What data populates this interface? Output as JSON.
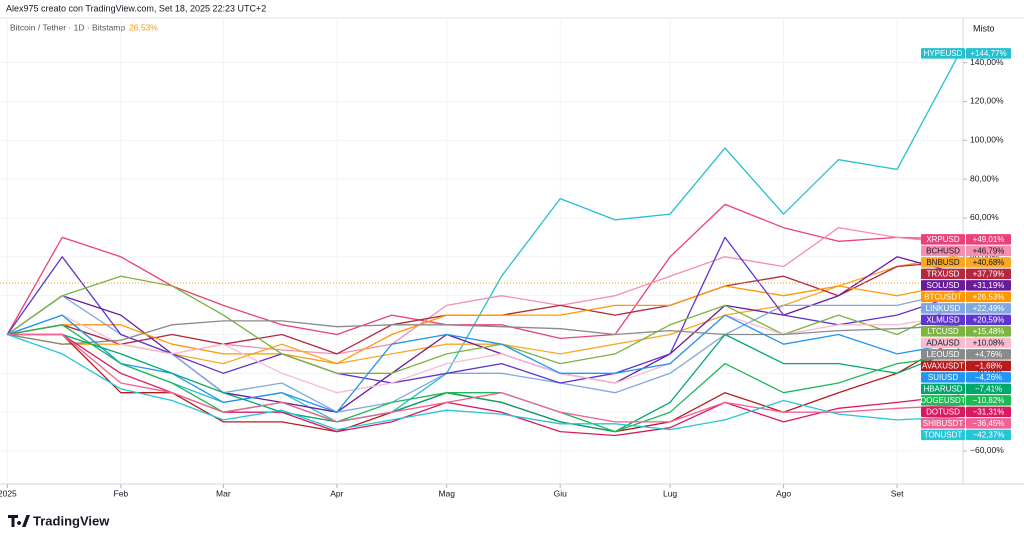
{
  "chart_data": {
    "type": "line",
    "title": "Alex975 creato con TradingView.com, Set 18, 2025 22:23 UTC+2",
    "subtitle": "Bitcoin / Tether · 1D · Bitstamp",
    "subtitle_value": "26,53%",
    "scale_label": "Misto",
    "brand": "TradingView",
    "x": [
      0,
      15,
      31,
      45,
      59,
      75,
      90,
      105,
      120,
      135,
      151,
      166,
      181,
      196,
      212,
      227,
      243,
      260
    ],
    "xlim": [
      -2,
      261
    ],
    "xticks": [
      {
        "value": 0,
        "label": "2025"
      },
      {
        "value": 31,
        "label": "Feb"
      },
      {
        "value": 59,
        "label": "Mar"
      },
      {
        "value": 90,
        "label": "Apr"
      },
      {
        "value": 120,
        "label": "Mag"
      },
      {
        "value": 151,
        "label": "Giu"
      },
      {
        "value": 181,
        "label": "Lug"
      },
      {
        "value": 212,
        "label": "Ago"
      },
      {
        "value": 243,
        "label": "Set"
      }
    ],
    "ylim": [
      -77,
      163
    ],
    "yticks": [
      {
        "value": 140,
        "label": "140,00%"
      },
      {
        "value": 120,
        "label": "120,00%"
      },
      {
        "value": 100,
        "label": "100,00%"
      },
      {
        "value": 80,
        "label": "80,00%"
      },
      {
        "value": 60,
        "label": "60,00%"
      },
      {
        "value": 40,
        "label": "40,00%"
      },
      {
        "value": 20,
        "label": "20,00%"
      },
      {
        "value": 0,
        "label": "0,00%"
      },
      {
        "value": -20,
        "label": "−20,00%"
      },
      {
        "value": -40,
        "label": "−40,00%"
      },
      {
        "value": -60,
        "label": "−60,00%"
      }
    ],
    "grid": true,
    "series": [
      {
        "name": "HYPEUSD",
        "color": "#26bfd0",
        "values": [
          0,
          10,
          -15,
          -25,
          -35,
          -30,
          -45,
          -40,
          -20,
          30,
          70,
          59,
          62,
          96,
          62,
          90,
          85,
          144.77
        ],
        "value_labels": [
          null,
          null,
          null,
          null,
          null,
          null,
          null,
          null,
          null,
          null,
          null,
          null,
          null,
          null,
          null,
          null,
          null,
          "+144,77%"
        ]
      },
      {
        "name": "XRPUSD",
        "color": "#ec407a",
        "values": [
          0,
          50,
          40,
          25,
          15,
          5,
          0,
          10,
          5,
          5,
          -2,
          0,
          40,
          67,
          55,
          48,
          50,
          49.01
        ],
        "value_labels": [
          null,
          null,
          null,
          null,
          null,
          null,
          null,
          null,
          null,
          null,
          null,
          null,
          null,
          null,
          null,
          null,
          null,
          "+49,01%"
        ]
      },
      {
        "name": "BCHUSD",
        "color": "#f48fb1",
        "values": [
          0,
          5,
          -5,
          -10,
          -5,
          -8,
          -10,
          -5,
          15,
          20,
          15,
          20,
          30,
          40,
          35,
          55,
          50,
          46.79
        ],
        "value_labels": [
          null,
          null,
          null,
          null,
          null,
          null,
          null,
          null,
          null,
          null,
          null,
          null,
          null,
          null,
          null,
          null,
          null,
          "+46,79%"
        ]
      },
      {
        "name": "BNBUSD",
        "color": "#f9a825",
        "values": [
          0,
          -5,
          -5,
          -10,
          -15,
          -5,
          -15,
          -10,
          -5,
          -5,
          -10,
          -5,
          0,
          10,
          15,
          25,
          35,
          40.68
        ],
        "value_labels": [
          null,
          null,
          null,
          null,
          null,
          null,
          null,
          null,
          null,
          null,
          null,
          null,
          null,
          null,
          null,
          null,
          null,
          "+40,68%"
        ]
      },
      {
        "name": "TRXUSD",
        "color": "#b3283e",
        "values": [
          0,
          5,
          -5,
          0,
          -5,
          0,
          -10,
          5,
          10,
          10,
          15,
          10,
          15,
          25,
          30,
          20,
          35,
          37.79
        ],
        "value_labels": [
          null,
          null,
          null,
          null,
          null,
          null,
          null,
          null,
          null,
          null,
          null,
          null,
          null,
          null,
          null,
          null,
          null,
          "+37,79%"
        ]
      },
      {
        "name": "SOLUSD",
        "color": "#6a1b9a",
        "values": [
          0,
          20,
          10,
          -10,
          -30,
          -35,
          -40,
          -20,
          0,
          -10,
          -20,
          -25,
          -10,
          15,
          10,
          20,
          40,
          31.19
        ],
        "value_labels": [
          null,
          null,
          null,
          null,
          null,
          null,
          null,
          null,
          null,
          null,
          null,
          null,
          null,
          null,
          null,
          null,
          null,
          "+31,19%"
        ]
      },
      {
        "name": "BTCUSDT",
        "color": "#ff9800",
        "values": [
          0,
          5,
          5,
          -5,
          -10,
          -10,
          -15,
          0,
          10,
          10,
          10,
          15,
          15,
          25,
          20,
          25,
          20,
          26.53
        ],
        "value_labels": [
          null,
          null,
          null,
          null,
          null,
          null,
          null,
          null,
          null,
          null,
          null,
          null,
          null,
          null,
          null,
          null,
          null,
          "+26,53%"
        ]
      },
      {
        "name": "LINKUSD",
        "color": "#7fa8e0",
        "values": [
          0,
          20,
          0,
          -10,
          -30,
          -25,
          -40,
          -35,
          -20,
          -20,
          -25,
          -30,
          -20,
          0,
          15,
          15,
          15,
          22.49
        ],
        "value_labels": [
          null,
          null,
          null,
          null,
          null,
          null,
          null,
          null,
          null,
          null,
          null,
          null,
          null,
          null,
          null,
          null,
          null,
          "+22,49%"
        ]
      },
      {
        "name": "XLMUSD",
        "color": "#5e35d1",
        "values": [
          0,
          40,
          0,
          -10,
          -20,
          -10,
          -20,
          -25,
          -20,
          -15,
          -25,
          -20,
          -10,
          50,
          10,
          5,
          10,
          20.59
        ],
        "value_labels": [
          null,
          null,
          null,
          null,
          null,
          null,
          null,
          null,
          null,
          null,
          null,
          null,
          null,
          null,
          null,
          null,
          null,
          "+20,59%"
        ]
      },
      {
        "name": "LTCUSD",
        "color": "#7cb342",
        "values": [
          0,
          20,
          30,
          25,
          10,
          -10,
          -20,
          -20,
          -10,
          -5,
          -15,
          -10,
          5,
          15,
          0,
          10,
          0,
          15.48
        ],
        "value_labels": [
          null,
          null,
          null,
          null,
          null,
          null,
          null,
          null,
          null,
          null,
          null,
          null,
          null,
          null,
          null,
          null,
          null,
          "+15,48%"
        ]
      },
      {
        "name": "ADAUSD",
        "color": "#f8bbd0",
        "values": [
          0,
          10,
          -5,
          -10,
          -5,
          -20,
          -30,
          -25,
          -15,
          -10,
          -20,
          -25,
          -15,
          10,
          0,
          5,
          5,
          10.08
        ],
        "value_labels": [
          null,
          null,
          null,
          null,
          null,
          null,
          null,
          null,
          null,
          null,
          null,
          null,
          null,
          null,
          null,
          null,
          null,
          "+10,08%"
        ]
      },
      {
        "name": "LEOUSD",
        "color": "#8a8a8a",
        "values": [
          0,
          -5,
          -3,
          5,
          7,
          7,
          4,
          5,
          5,
          4,
          3,
          0,
          2,
          0,
          0,
          2,
          3,
          4.76
        ],
        "value_labels": [
          null,
          null,
          null,
          null,
          null,
          null,
          null,
          null,
          null,
          null,
          null,
          null,
          null,
          null,
          null,
          null,
          null,
          "+4,76%"
        ]
      },
      {
        "name": "AVAXUSDT",
        "color": "#b71c1c",
        "values": [
          0,
          0,
          -30,
          -30,
          -45,
          -45,
          -50,
          -40,
          -30,
          -35,
          -45,
          -50,
          -45,
          -30,
          -40,
          -30,
          -20,
          -1.68
        ],
        "value_labels": [
          null,
          null,
          null,
          null,
          null,
          null,
          null,
          null,
          null,
          null,
          null,
          null,
          null,
          null,
          null,
          null,
          null,
          "−1,68%"
        ]
      },
      {
        "name": "SUIUSD",
        "color": "#2196f3",
        "values": [
          0,
          10,
          -15,
          -20,
          -35,
          -30,
          -40,
          -5,
          0,
          -5,
          -20,
          -20,
          -15,
          10,
          -5,
          0,
          -10,
          -4.26
        ],
        "value_labels": [
          null,
          null,
          null,
          null,
          null,
          null,
          null,
          null,
          null,
          null,
          null,
          null,
          null,
          null,
          null,
          null,
          null,
          "−4,26%"
        ]
      },
      {
        "name": "HBARUSD",
        "color": "#00a86b",
        "values": [
          0,
          0,
          -10,
          -20,
          -30,
          -40,
          -45,
          -40,
          -30,
          -35,
          -45,
          -50,
          -35,
          0,
          -15,
          -15,
          -20,
          -7.41
        ],
        "value_labels": [
          null,
          null,
          null,
          null,
          null,
          null,
          null,
          null,
          null,
          null,
          null,
          null,
          null,
          null,
          null,
          null,
          null,
          "−7,41%"
        ]
      },
      {
        "name": "DOGEUSDT",
        "color": "#1db954",
        "values": [
          0,
          5,
          -15,
          -25,
          -40,
          -35,
          -45,
          -35,
          -30,
          -30,
          -40,
          -50,
          -40,
          -15,
          -30,
          -25,
          -15,
          -10.82
        ],
        "value_labels": [
          null,
          null,
          null,
          null,
          null,
          null,
          null,
          null,
          null,
          null,
          null,
          null,
          null,
          null,
          null,
          null,
          null,
          "−10,82%"
        ]
      },
      {
        "name": "DOTUSD",
        "color": "#d81b60",
        "values": [
          0,
          0,
          -20,
          -30,
          -40,
          -40,
          -50,
          -45,
          -35,
          -40,
          -50,
          -52,
          -48,
          -35,
          -45,
          -38,
          -35,
          -31.31
        ],
        "value_labels": [
          null,
          null,
          null,
          null,
          null,
          null,
          null,
          null,
          null,
          null,
          null,
          null,
          null,
          null,
          null,
          null,
          null,
          "−31,31%"
        ]
      },
      {
        "name": "SHIBUSDT",
        "color": "#f06292",
        "values": [
          0,
          0,
          -25,
          -30,
          -40,
          -35,
          -45,
          -40,
          -35,
          -30,
          -40,
          -45,
          -45,
          -35,
          -40,
          -40,
          -38,
          -36.45
        ],
        "value_labels": [
          null,
          null,
          null,
          null,
          null,
          null,
          null,
          null,
          null,
          null,
          null,
          null,
          null,
          null,
          null,
          null,
          null,
          "−36,45%"
        ]
      },
      {
        "name": "TONUSDT",
        "color": "#26c6da",
        "values": [
          0,
          -10,
          -28,
          -34,
          -44,
          -39,
          -49,
          -44,
          -39,
          -41,
          -46,
          -46,
          -49,
          -44,
          -34,
          -41,
          -44,
          -42.37
        ],
        "value_labels": [
          null,
          null,
          null,
          null,
          null,
          null,
          null,
          null,
          null,
          null,
          null,
          null,
          null,
          null,
          null,
          null,
          null,
          "−42,37%"
        ]
      }
    ]
  }
}
